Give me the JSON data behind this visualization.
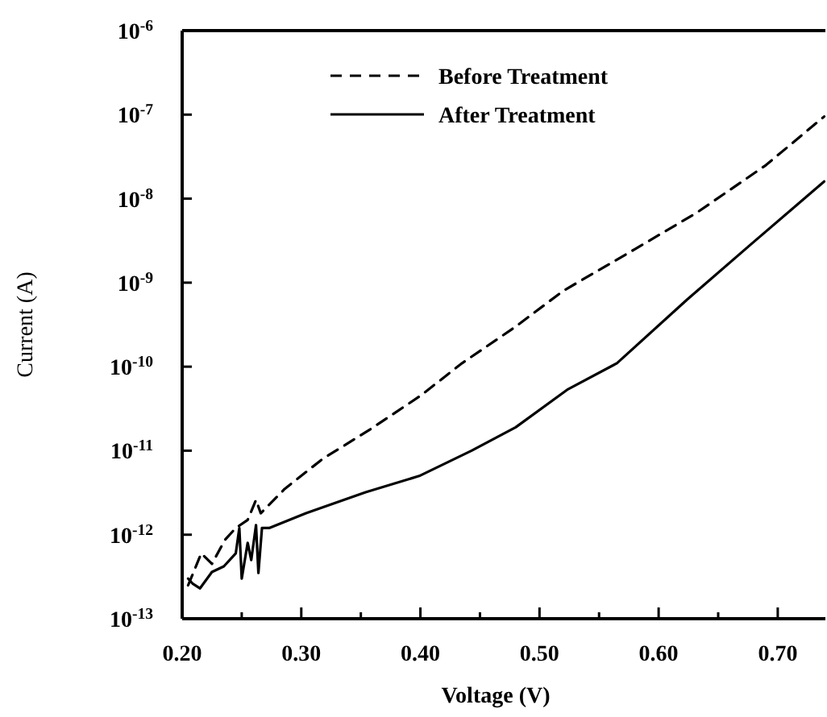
{
  "chart_data": {
    "type": "line",
    "xlabel": "Voltage (V)",
    "ylabel": "Current (A)",
    "log": "y",
    "grid": false,
    "legend": "top",
    "xlim": [
      0.2,
      0.74
    ],
    "ylim": [
      1e-13,
      1e-06
    ],
    "xticks": [
      {
        "value": 0.2,
        "label": "0.20"
      },
      {
        "value": 0.25,
        "label": null
      },
      {
        "value": 0.3,
        "label": "0.30"
      },
      {
        "value": 0.35,
        "label": null
      },
      {
        "value": 0.4,
        "label": "0.40"
      },
      {
        "value": 0.45,
        "label": null
      },
      {
        "value": 0.5,
        "label": "0.50"
      },
      {
        "value": 0.55,
        "label": null
      },
      {
        "value": 0.6,
        "label": "0.60"
      },
      {
        "value": 0.65,
        "label": null
      },
      {
        "value": 0.7,
        "label": "0.70"
      }
    ],
    "yticks": [
      {
        "value": 1e-13,
        "label": "10$^{-13}$"
      },
      {
        "value": 1e-12,
        "label": "10$^{-12}$"
      },
      {
        "value": 1e-11,
        "label": "10$^{-11}$"
      },
      {
        "value": 1e-10,
        "label": "10$^{-10}$"
      },
      {
        "value": 1e-09,
        "label": "10$^{-9}$"
      },
      {
        "value": 1e-08,
        "label": "10$^{-8}$"
      },
      {
        "value": 1e-07,
        "label": "10$^{-7}$"
      },
      {
        "value": 1e-06,
        "label": "10$^{-6}$"
      }
    ],
    "series": [
      {
        "name": "Before Treatment",
        "color": "#000000",
        "line_style": "dashed",
        "x": [
          0.205,
          0.216,
          0.225,
          0.236,
          0.245,
          0.255,
          0.262,
          0.266,
          0.286,
          0.318,
          0.358,
          0.4,
          0.435,
          0.48,
          0.52,
          0.58,
          0.632,
          0.69,
          0.739
        ],
        "values": [
          2.5e-13,
          6e-13,
          4.5e-13,
          8.7e-13,
          1.2e-12,
          1.5e-12,
          2.6e-12,
          1.8e-12,
          3.5e-12,
          8e-12,
          1.8e-11,
          4.5e-11,
          1.1e-10,
          3e-10,
          8e-10,
          2.5e-09,
          6.8e-09,
          2.5e-08,
          9.5e-08
        ]
      },
      {
        "name": "After Treatment",
        "color": "#000000",
        "line_style": "solid",
        "x": [
          0.205,
          0.209,
          0.215,
          0.225,
          0.235,
          0.245,
          0.248,
          0.25,
          0.255,
          0.258,
          0.262,
          0.264,
          0.267,
          0.273,
          0.304,
          0.354,
          0.399,
          0.443,
          0.48,
          0.524,
          0.565,
          0.624,
          0.678,
          0.739
        ],
        "values": [
          3e-13,
          2.6e-13,
          2.3e-13,
          3.6e-13,
          4.2e-13,
          6e-13,
          1.2e-12,
          3e-13,
          8e-13,
          5e-13,
          1.3e-12,
          3.5e-13,
          1.2e-12,
          1.2e-12,
          1.8e-12,
          3.2e-12,
          5e-12,
          1e-11,
          1.9e-11,
          5.4e-11,
          1.1e-10,
          6.3e-10,
          2.9e-09,
          1.6e-08
        ]
      }
    ]
  }
}
